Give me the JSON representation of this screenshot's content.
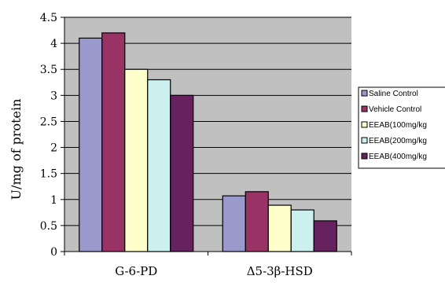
{
  "chart_data": {
    "type": "bar",
    "title": "",
    "xlabel": "",
    "ylabel": "U/mg of protein",
    "ylim": [
      0,
      4.5
    ],
    "yticks": [
      "0",
      "0.5",
      "1",
      "1.5",
      "2",
      "2.5",
      "3",
      "3.5",
      "4",
      "4.5"
    ],
    "grid": true,
    "legend_position": "right",
    "categories": [
      "G-6-PD",
      "Δ5-3β-HSD"
    ],
    "series": [
      {
        "name": "Saline Control",
        "values": [
          4.1,
          1.07
        ],
        "color": "#9999cc"
      },
      {
        "name": "Vehicle Control",
        "values": [
          4.2,
          1.15
        ],
        "color": "#993366"
      },
      {
        "name": "EEAB(100mg/kg",
        "values": [
          3.5,
          0.89
        ],
        "color": "#ffffcc"
      },
      {
        "name": "EEAB(200mg/kg",
        "values": [
          3.3,
          0.8
        ],
        "color": "#ccf0f0"
      },
      {
        "name": "EEAB(400mg/kg",
        "values": [
          3.0,
          0.59
        ],
        "color": "#66225e"
      }
    ],
    "plot_background": "#c0c0c0"
  }
}
